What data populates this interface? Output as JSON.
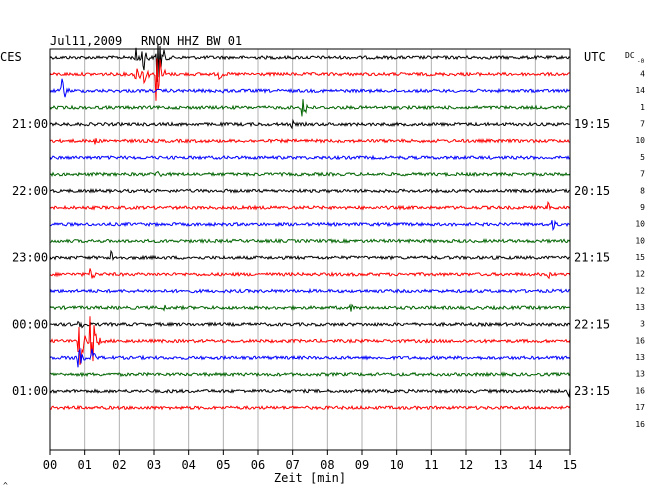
{
  "header": {
    "date": "Jul11,2009",
    "station": "RNON HHZ BW 01",
    "left_label": "CES",
    "right_label": "UTC",
    "dc_label": "DC",
    "dc_sub": "-0",
    "corner_mark": "^"
  },
  "chart_data": {
    "type": "line",
    "title": "Jul11,2009   RNON HHZ BW 01",
    "xlabel": "Zeit [min]",
    "xlim": [
      0,
      15
    ],
    "x_ticks": [
      "00",
      "01",
      "02",
      "03",
      "04",
      "05",
      "06",
      "07",
      "08",
      "09",
      "10",
      "11",
      "12",
      "13",
      "14",
      "15"
    ],
    "grid": true,
    "trace_colors": [
      "#000000",
      "#ff0000",
      "#0000ff",
      "#006400"
    ],
    "local_time_labels": [
      {
        "trace": 4,
        "text": "21:00"
      },
      {
        "trace": 8,
        "text": "22:00"
      },
      {
        "trace": 12,
        "text": "23:00"
      },
      {
        "trace": 16,
        "text": "00:00"
      },
      {
        "trace": 20,
        "text": "01:00"
      }
    ],
    "utc_time_labels": [
      {
        "trace": 4,
        "text": "19:15"
      },
      {
        "trace": 8,
        "text": "20:15"
      },
      {
        "trace": 12,
        "text": "21:15"
      },
      {
        "trace": 16,
        "text": "22:15"
      },
      {
        "trace": 20,
        "text": "23:15"
      }
    ],
    "dc_offsets": [
      "4",
      "14",
      "1",
      "7",
      "10",
      "5",
      "7",
      "8",
      "9",
      "10",
      "10",
      "15",
      "12",
      "12",
      "13",
      "3",
      "16",
      "13",
      "13",
      "16",
      "17",
      "16"
    ],
    "events": [
      {
        "trace": 0,
        "minute": 2.5,
        "amplitude": 10
      },
      {
        "trace": 0,
        "minute": 2.7,
        "amplitude": 14
      },
      {
        "trace": 0,
        "minute": 3.1,
        "amplitude": 40
      },
      {
        "trace": 1,
        "minute": 2.5,
        "amplitude": 10
      },
      {
        "trace": 1,
        "minute": 2.7,
        "amplitude": 12
      },
      {
        "trace": 1,
        "minute": 3.1,
        "amplitude": 32
      },
      {
        "trace": 1,
        "minute": 4.9,
        "amplitude": 6
      },
      {
        "trace": 2,
        "minute": 0.35,
        "amplitude": 14
      },
      {
        "trace": 2,
        "minute": 5.0,
        "amplitude": 4
      },
      {
        "trace": 3,
        "minute": 7.3,
        "amplitude": 14
      },
      {
        "trace": 4,
        "minute": 7.0,
        "amplitude": 4
      },
      {
        "trace": 5,
        "minute": 1.3,
        "amplitude": 4
      },
      {
        "trace": 7,
        "minute": 3.1,
        "amplitude": 6
      },
      {
        "trace": 9,
        "minute": 14.4,
        "amplitude": 6
      },
      {
        "trace": 10,
        "minute": 14.5,
        "amplitude": 6
      },
      {
        "trace": 12,
        "minute": 1.8,
        "amplitude": 8
      },
      {
        "trace": 13,
        "minute": 1.2,
        "amplitude": 7
      },
      {
        "trace": 13,
        "minute": 14.4,
        "amplitude": 4
      },
      {
        "trace": 15,
        "minute": 3.3,
        "amplitude": 4
      },
      {
        "trace": 15,
        "minute": 8.7,
        "amplitude": 4
      },
      {
        "trace": 17,
        "minute": 0.85,
        "amplitude": 30
      },
      {
        "trace": 17,
        "minute": 1.2,
        "amplitude": 30
      },
      {
        "trace": 16,
        "minute": 0.85,
        "amplitude": 8
      },
      {
        "trace": 18,
        "minute": 0.85,
        "amplitude": 10
      },
      {
        "trace": 18,
        "minute": 1.2,
        "amplitude": 10
      },
      {
        "trace": 20,
        "minute": 14.95,
        "amplitude": 8
      },
      {
        "trace": 20,
        "minute": 3.5,
        "amplitude": 3
      },
      {
        "trace": 22,
        "minute": 4.1,
        "amplitude": 6
      },
      {
        "trace": 22,
        "minute": 14.3,
        "amplitude": 4
      }
    ]
  }
}
